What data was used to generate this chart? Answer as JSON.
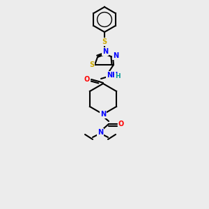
{
  "bg_color": "#ececec",
  "bond_color": "#000000",
  "atom_colors": {
    "N": "#0000ff",
    "O": "#ff0000",
    "S": "#ccaa00",
    "H": "#009999",
    "C": "#000000"
  },
  "figsize": [
    3.0,
    3.0
  ],
  "dpi": 100
}
